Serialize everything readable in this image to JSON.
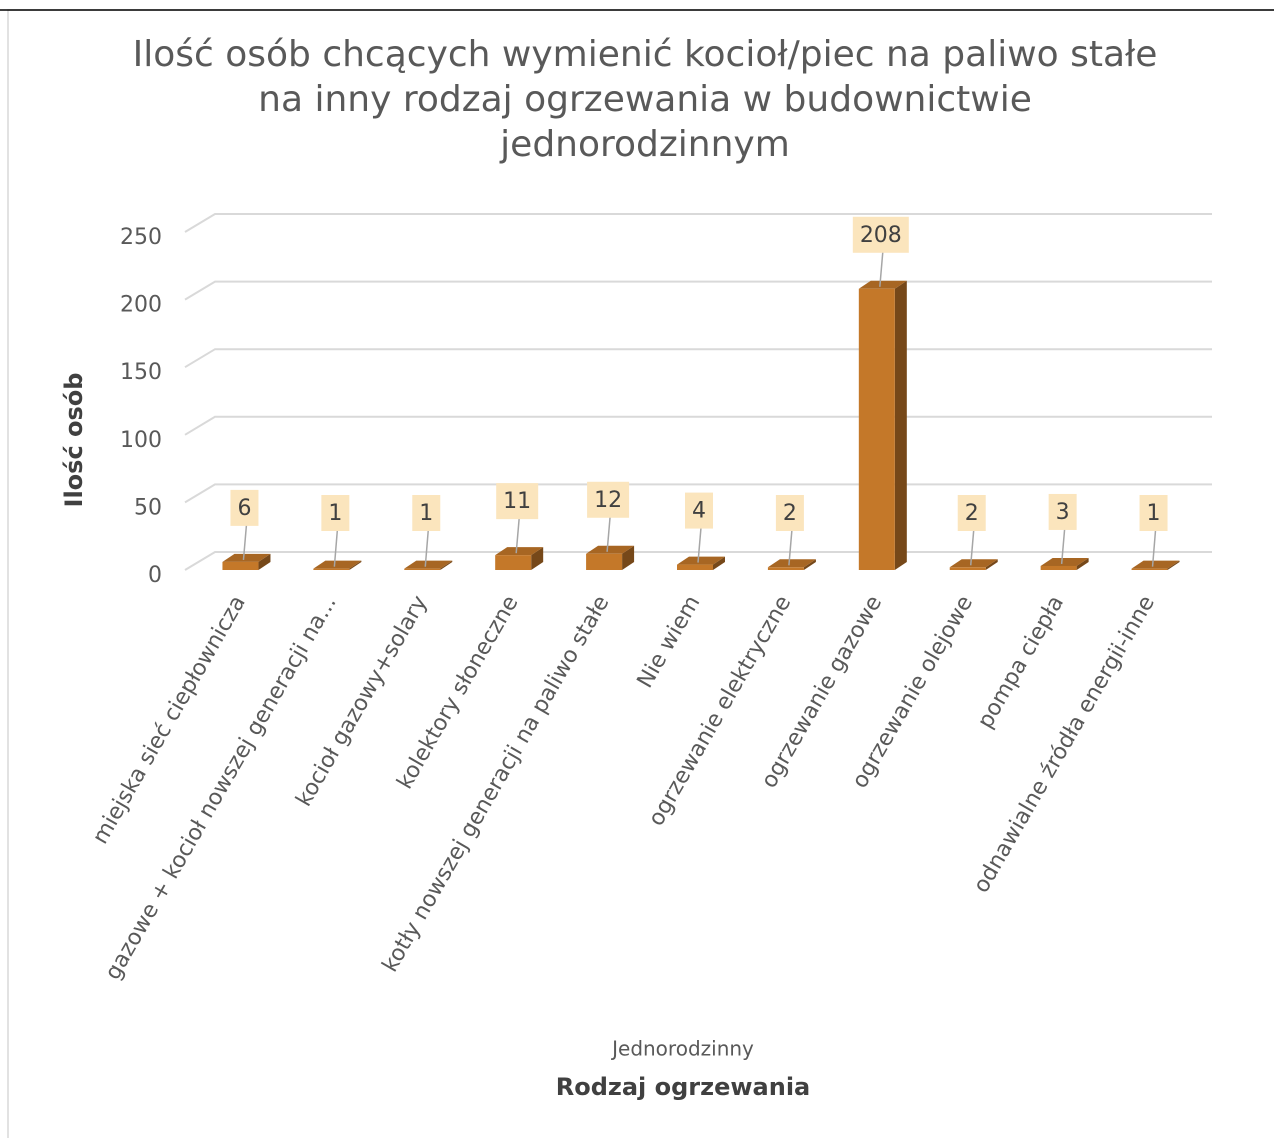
{
  "chart_data": {
    "type": "bar3d",
    "title": "Ilość osób chcących wymienić kocioł/piec na paliwo stałe na inny rodzaj ogrzewania w budownictwie jednorodzinnym",
    "y_label": "Ilość osób",
    "x_label": "Rodzaj ogrzewania",
    "categories": [
      "miejska sieć ciepłownicza",
      "gazowe + kocioł nowszej generacji na...",
      "kocioł gazowy+solary",
      "kolektory słoneczne",
      "kotły nowszej generacji na paliwo stałe",
      "Nie wiem",
      "ogrzewanie elektryczne",
      "ogrzewanie gazowe",
      "ogrzewanie olejowe",
      "pompa ciepła",
      "odnawialne źródła energii-inne"
    ],
    "series": [
      {
        "name": "Jednorodzinny",
        "color": "#c47829",
        "values": [
          6,
          1,
          1,
          11,
          12,
          4,
          2,
          208,
          2,
          3,
          1
        ]
      }
    ],
    "ylim": [
      0,
      250
    ],
    "yticks": [
      0,
      50,
      100,
      150,
      200,
      250
    ],
    "grid": true,
    "legend": "bottom"
  }
}
